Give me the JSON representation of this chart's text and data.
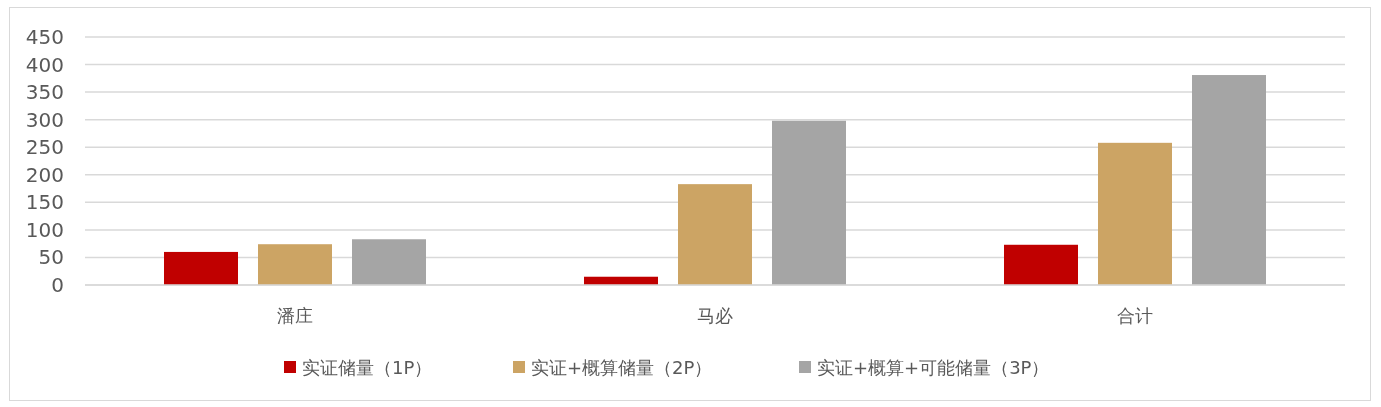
{
  "chart_data": {
    "type": "bar",
    "categories": [
      "潘庄",
      "马必",
      "合计"
    ],
    "series": [
      {
        "name": "实证储量（1P）",
        "color": "#c00000",
        "values": [
          60,
          15,
          73
        ]
      },
      {
        "name": "实证+概算储量（2P）",
        "color": "#cca464",
        "values": [
          74,
          183,
          258
        ]
      },
      {
        "name": "实证+概算+可能储量（3P）",
        "color": "#a5a5a5",
        "values": [
          83,
          298,
          381
        ]
      }
    ],
    "ylim": [
      0,
      450
    ],
    "yticks": [
      0,
      50,
      100,
      150,
      200,
      250,
      300,
      350,
      400,
      450
    ],
    "grid": "y",
    "legend": "bottom"
  }
}
